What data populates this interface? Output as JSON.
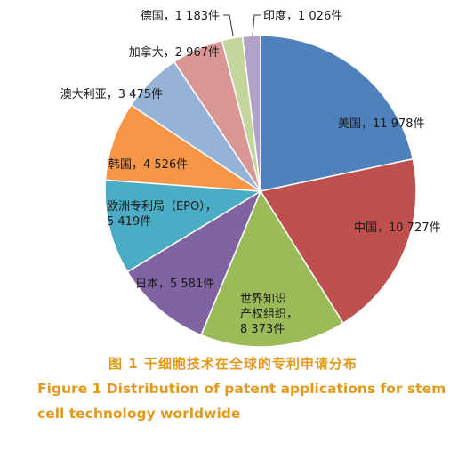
{
  "chart_data": {
    "type": "pie",
    "slices": [
      {
        "label": "美国，11 978件",
        "lines": [
          "美国，11 978件"
        ],
        "value": 11978,
        "color": "#4f81bd"
      },
      {
        "label": "中国，10 727件",
        "lines": [
          "中国，10 727件"
        ],
        "value": 10727,
        "color": "#c0504d"
      },
      {
        "label": "世界知识产权组织，8 373件",
        "lines": [
          "世界知识",
          "产权组织，",
          "8 373件"
        ],
        "value": 8373,
        "color": "#9bbb59"
      },
      {
        "label": "日本，5 581件",
        "lines": [
          "日本，5 581件"
        ],
        "value": 5581,
        "color": "#8064a2"
      },
      {
        "label": "欧洲专利局（EPO），5 419件",
        "lines": [
          "欧洲专利局（EPO），",
          "5 419件"
        ],
        "value": 5419,
        "color": "#4bacc6"
      },
      {
        "label": "韩国，4 526件",
        "lines": [
          "韩国，4 526件"
        ],
        "value": 4526,
        "color": "#f79646"
      },
      {
        "label": "澳大利亚，3 475件",
        "lines": [
          "澳大利亚，3 475件"
        ],
        "value": 3475,
        "color": "#95b3d7"
      },
      {
        "label": "加拿大，2 967件",
        "lines": [
          "加拿大，2 967件"
        ],
        "value": 2967,
        "color": "#d99694"
      },
      {
        "label": "德国，1 183件",
        "lines": [
          "德国，1 183件"
        ],
        "value": 1183,
        "color": "#c3d69b"
      },
      {
        "label": "印度，1 026件",
        "lines": [
          "印度，1 026件"
        ],
        "value": 1026,
        "color": "#b3a2c7"
      }
    ]
  },
  "caption": {
    "chinese": "图 1  干细胞技术在全球的专利申请分布",
    "english_line1": "Figure 1  Distribution of patent applications for stem",
    "english_line2": "cell technology worldwide",
    "color": "#e39a1c"
  }
}
